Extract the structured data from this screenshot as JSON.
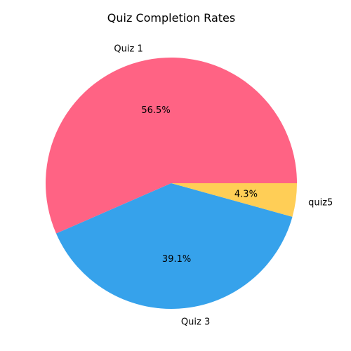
{
  "chart_data": {
    "type": "pie",
    "title": "Quiz Completion Rates",
    "slices": [
      {
        "label": "Quiz 1",
        "percent": 56.5,
        "percent_label": "56.5%",
        "color": "#FF6384"
      },
      {
        "label": "Quiz 3",
        "percent": 39.1,
        "percent_label": "39.1%",
        "color": "#36A2EB"
      },
      {
        "label": "quiz5",
        "percent": 4.3,
        "percent_label": "4.3%",
        "color": "#FFCE56"
      }
    ],
    "start_angle_deg": 0,
    "direction": "counterclockwise"
  }
}
